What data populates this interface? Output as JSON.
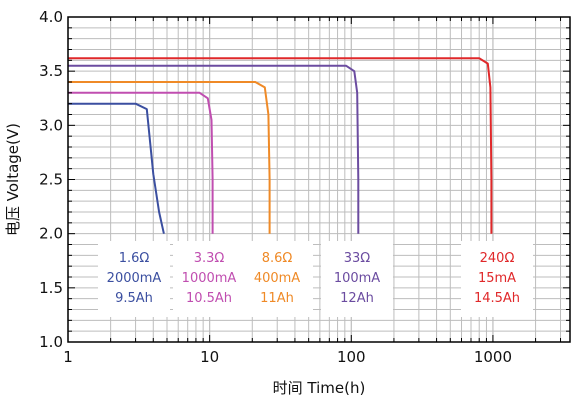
{
  "chart_data": {
    "type": "line",
    "xlabel": "时间 Time(h)",
    "ylabel": "电压 Voltage(V)",
    "xscale": "log",
    "xlim": [
      1,
      3500
    ],
    "ylim": [
      1.0,
      4.0
    ],
    "grid": true,
    "xticks": [
      "1",
      "10",
      "100",
      "1000"
    ],
    "yticks": [
      "1.0",
      "1.5",
      "2.0",
      "2.5",
      "3.0",
      "3.5",
      "4.0"
    ],
    "series": [
      {
        "color": "#3b4fa0",
        "annotation": [
          "1.6Ω",
          "2000mA",
          "9.5Ah"
        ],
        "points": [
          [
            1,
            3.2
          ],
          [
            3.0,
            3.2
          ],
          [
            3.6,
            3.15
          ],
          [
            4.0,
            2.55
          ],
          [
            4.4,
            2.2
          ],
          [
            4.75,
            2.0
          ]
        ]
      },
      {
        "color": "#c04eb0",
        "annotation": [
          "3.3Ω",
          "1000mA",
          "10.5Ah"
        ],
        "points": [
          [
            1,
            3.3
          ],
          [
            8.5,
            3.3
          ],
          [
            9.7,
            3.25
          ],
          [
            10.3,
            3.05
          ],
          [
            10.5,
            2.5
          ],
          [
            10.5,
            2.0
          ]
        ]
      },
      {
        "color": "#ef8a27",
        "annotation": [
          "8.6Ω",
          "400mA",
          "11Ah"
        ],
        "points": [
          [
            1,
            3.4
          ],
          [
            21,
            3.4
          ],
          [
            24.5,
            3.35
          ],
          [
            26,
            3.1
          ],
          [
            26.5,
            2.5
          ],
          [
            26.5,
            2.0
          ]
        ]
      },
      {
        "color": "#6b4ca0",
        "annotation": [
          "33Ω",
          "100mA",
          "12Ah"
        ],
        "points": [
          [
            1,
            3.55
          ],
          [
            92,
            3.55
          ],
          [
            105,
            3.5
          ],
          [
            110,
            3.3
          ],
          [
            112,
            2.5
          ],
          [
            112,
            2.0
          ]
        ]
      },
      {
        "color": "#e0282a",
        "annotation": [
          "240Ω",
          "15mA",
          "14.5Ah"
        ],
        "points": [
          [
            1,
            3.62
          ],
          [
            800,
            3.62
          ],
          [
            920,
            3.57
          ],
          [
            960,
            3.35
          ],
          [
            975,
            2.5
          ],
          [
            975,
            2.0
          ]
        ]
      }
    ]
  }
}
